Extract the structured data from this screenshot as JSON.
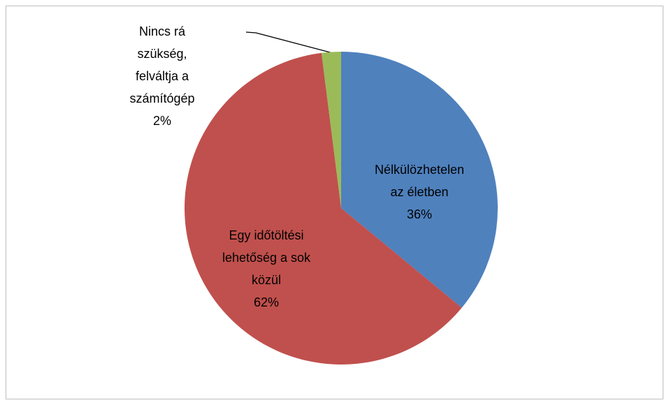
{
  "chart_data": {
    "type": "pie",
    "categories": [
      "Nélkülözhetelen az életben",
      "Egy időtöltési lehetőség a sok közül",
      "Nincs rá szükség, felváltja a számítógép"
    ],
    "values": [
      36,
      62,
      2
    ],
    "value_labels": [
      "36%",
      "62%",
      "2%"
    ],
    "colors": [
      "#4f81bd",
      "#c0504d",
      "#9bbb59"
    ]
  }
}
